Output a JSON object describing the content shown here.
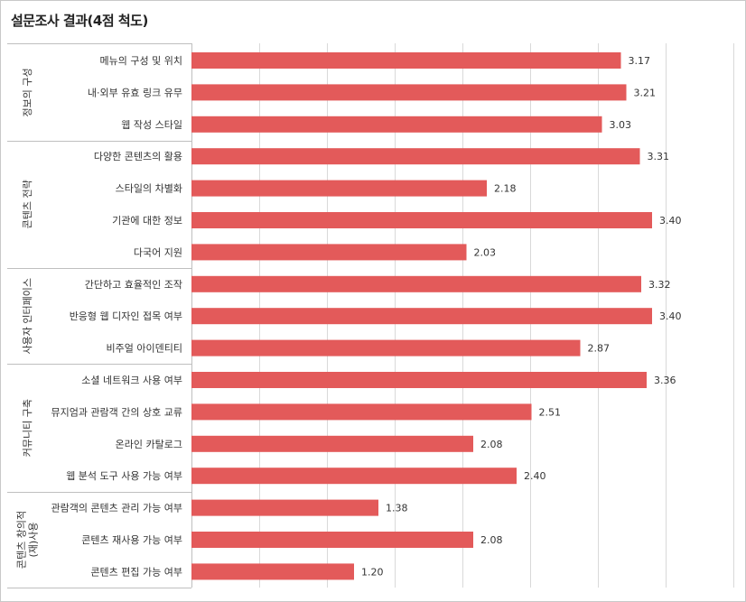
{
  "title": "설문조사 결과(4점 척도)",
  "chart_data": {
    "type": "bar",
    "orientation": "horizontal",
    "title": "설문조사 결과(4점 척도)",
    "xlabel": "",
    "ylabel": "",
    "xlim": [
      0,
      4
    ],
    "grid": true,
    "bar_color": "#e35a5a",
    "groups": [
      {
        "name": "정보의 구성",
        "lines": [
          "정보의 구성"
        ],
        "categories": [
          "메뉴의 구성 및 위치",
          "내·외부 유효 링크 유무",
          "웹 작성 스타일"
        ],
        "values": [
          3.17,
          3.21,
          3.03
        ]
      },
      {
        "name": "콘텐츠 전략",
        "lines": [
          "콘텐츠 전략"
        ],
        "categories": [
          "다양한 콘텐츠의 활용",
          "스타일의 차별화",
          "기관에 대한 정보",
          "다국어 지원"
        ],
        "values": [
          3.31,
          2.18,
          3.4,
          2.03
        ]
      },
      {
        "name": "사용자 인터페이스",
        "lines": [
          "사용자 인터페이스"
        ],
        "categories": [
          "간단하고 효율적인 조작",
          "반응형 웹 디자인 접목 여부",
          "비주얼 아이덴티티"
        ],
        "values": [
          3.32,
          3.4,
          2.87
        ]
      },
      {
        "name": "커뮤니티 구축",
        "lines": [
          "커뮤니티 구축"
        ],
        "categories": [
          "소셜 네트워크 사용 여부",
          "뮤지엄과 관람객 간의 상호 교류",
          "온라인 카탈로그",
          "웹 분석 도구 사용 가능 여부"
        ],
        "values": [
          3.36,
          2.51,
          2.08,
          2.4
        ]
      },
      {
        "name": "콘텐츠 창의적 (재)사용",
        "lines": [
          "콘텐츠 창의적",
          "(재)사용"
        ],
        "categories": [
          "관람객의 콘텐츠 관리 가능 여부",
          "콘텐츠 재사용 가능 여부",
          "콘텐츠 편집 가능 여부"
        ],
        "values": [
          1.38,
          2.08,
          1.2
        ]
      }
    ]
  }
}
